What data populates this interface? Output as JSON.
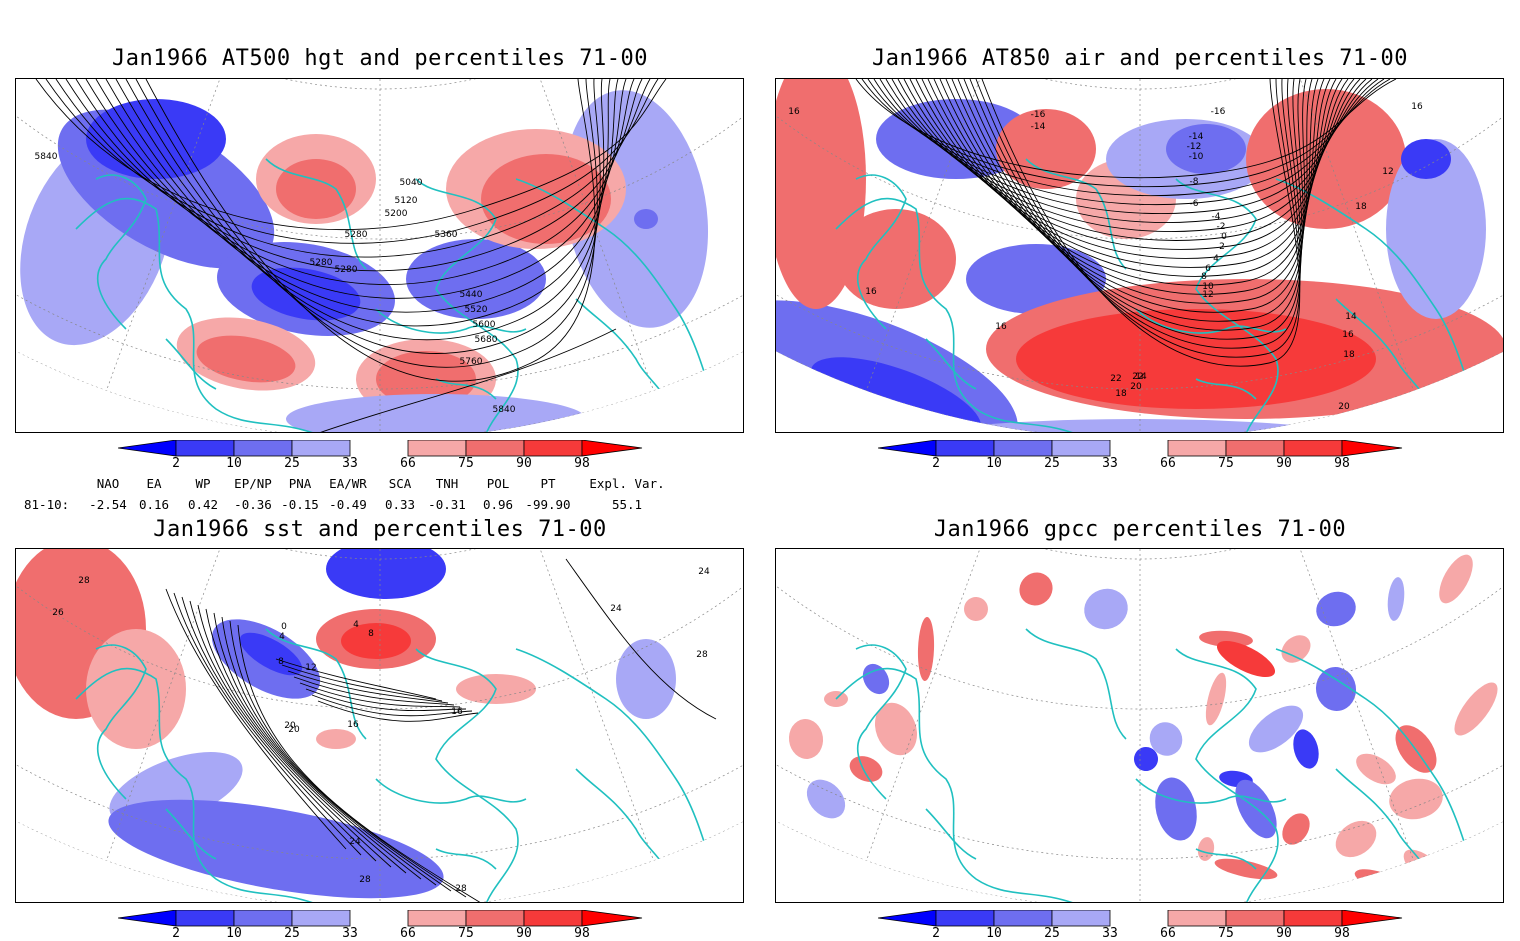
{
  "panels": [
    {
      "id": "hgt500",
      "title": "Jan1966 AT500 hgt and percentiles 71-00",
      "contour_labels": [
        "5040",
        "5120",
        "5200",
        "5280",
        "5360",
        "5280",
        "5280",
        "5440",
        "5520",
        "5600",
        "5680",
        "5760",
        "5840",
        "5840",
        "5840"
      ]
    },
    {
      "id": "air850",
      "title": "Jan1966 AT850 air and percentiles 71-00",
      "contour_labels": [
        "16",
        "-14",
        "-16",
        "-16",
        "-14",
        "-12",
        "-10",
        "-8",
        "-6",
        "-4",
        "-2",
        "0",
        "2",
        "4",
        "6",
        "8",
        "10",
        "12",
        "14",
        "16",
        "18",
        "20",
        "22",
        "22",
        "20",
        "18",
        "18",
        "16",
        "16",
        "14",
        "12",
        "16"
      ]
    },
    {
      "id": "sst",
      "title": "Jan1966 sst and percentiles 71-00",
      "contour_labels": [
        "28",
        "26",
        "24",
        "20",
        "16",
        "12",
        "8",
        "4",
        "0",
        "4",
        "8",
        "16",
        "20",
        "24",
        "28",
        "28",
        "28",
        "24"
      ]
    },
    {
      "id": "gpcc",
      "title": "Jan1966 gpcc percentiles 71-00",
      "contour_labels": []
    }
  ],
  "colorbar": {
    "labels": [
      "2",
      "10",
      "25",
      "33",
      "66",
      "75",
      "90",
      "98"
    ],
    "colors": {
      "below_2": "#0000ff",
      "2_10": "#3a3af6",
      "10_25": "#6e6ef0",
      "25_33": "#a8a8f6",
      "66_75": "#f6a8a8",
      "75_90": "#f06e6e",
      "90_98": "#f63a3a",
      "above_98": "#ff0000"
    }
  },
  "indices": {
    "headers": [
      "NAO",
      "EA",
      "WP",
      "EP/NP",
      "PNA",
      "EA/WR",
      "SCA",
      "TNH",
      "POL",
      "PT",
      "Expl. Var."
    ],
    "row_label": "81-10:",
    "values": [
      "-2.54",
      "0.16",
      "0.42",
      "-0.36",
      "-0.15",
      "-0.49",
      "0.33",
      "-0.31",
      "0.96",
      "-99.90",
      "55.1"
    ]
  },
  "colors": {
    "coast": "#20c0c0",
    "contour": "#000000",
    "grid": "#888888"
  }
}
